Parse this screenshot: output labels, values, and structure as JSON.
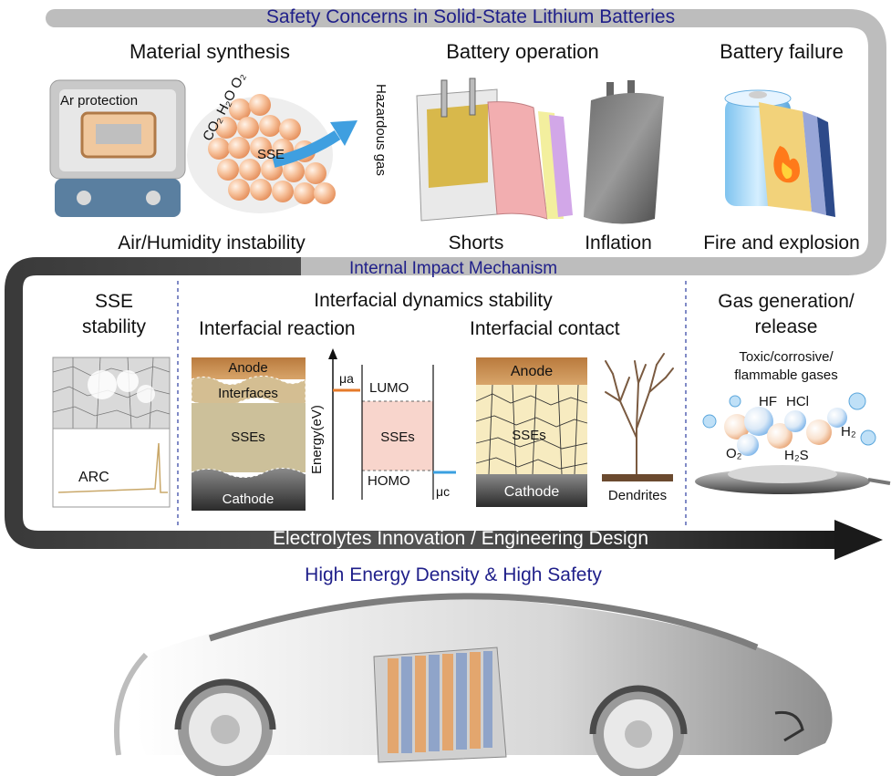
{
  "title_top": "Safety Concerns in Solid-State Lithium Batteries",
  "section1": {
    "material": {
      "heading": "Material synthesis",
      "box_label": "Ar protection",
      "gases": "CO₂ H₂O O₂",
      "particle_label": "SSE",
      "hazard": "Hazardous gas",
      "caption": "Air/Humidity instability"
    },
    "operation": {
      "heading": "Battery operation",
      "shorts": "Shorts",
      "inflation": "Inflation"
    },
    "failure": {
      "heading": "Battery failure",
      "caption": "Fire and explosion"
    }
  },
  "mechanism_title": "Internal Impact Mechanism",
  "section2": {
    "sse": {
      "heading_line1": "SSE",
      "heading_line2": "stability",
      "arc": "ARC"
    },
    "interfacial": {
      "heading": "Interfacial dynamics stability",
      "reaction": {
        "heading": "Interfacial reaction",
        "anode": "Anode",
        "interfaces": "Interfaces",
        "sses": "SSEs",
        "cathode": "Cathode",
        "energy_axis": "Energy(eV)",
        "mu_a": "μa",
        "mu_c": "μc",
        "lumo": "LUMO",
        "homo": "HOMO",
        "band": "SSEs"
      },
      "contact": {
        "heading": "Interfacial contact",
        "anode": "Anode",
        "sses": "SSEs",
        "cathode": "Cathode",
        "dendrites": "Dendrites"
      }
    },
    "gas": {
      "heading_line1": "Gas generation/",
      "heading_line2": "release",
      "sub_line1": "Toxic/corrosive/",
      "sub_line2": "flammable gases",
      "hf": "HF",
      "hcl": "HCl",
      "h2": "H₂",
      "o2": "O₂",
      "h2s": "H₂S"
    }
  },
  "arrow_text": "Electrolytes Innovation / Engineering Design",
  "goal": "High Energy Density & High Safety",
  "colors": {
    "title_blue": "#1f1f8a",
    "frame_gray": "#b5b5b5",
    "arrow_dark": "#2a2a2a",
    "anode_brown": "#a9682f",
    "sse_tan": "#ccc09a",
    "cathode_dark": "#3a3a3a",
    "particle_orange": "#f5b48a",
    "band_pink": "#f8d5cc",
    "gas_blue": "#8fc3ee"
  }
}
